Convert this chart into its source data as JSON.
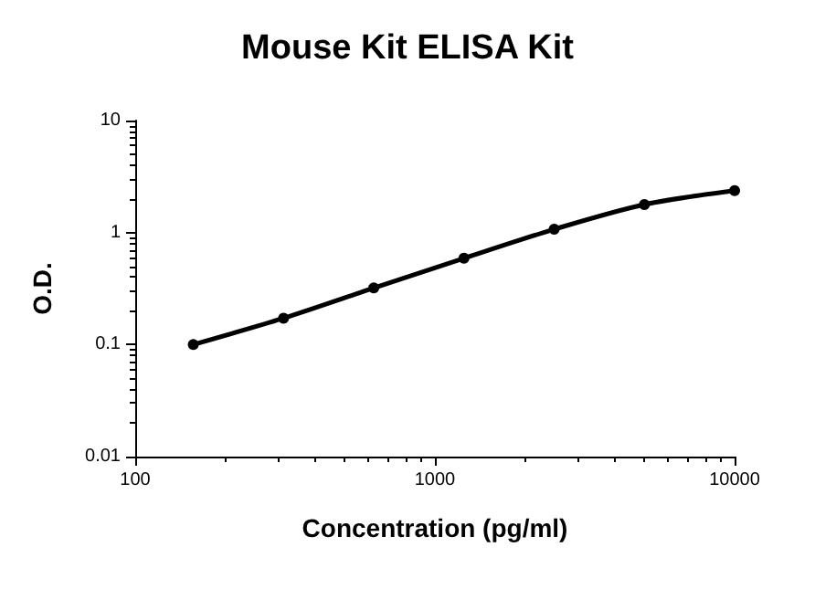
{
  "chart_data": {
    "type": "line",
    "title": "Mouse Kit ELISA Kit",
    "xlabel": "Concentration (pg/ml)",
    "ylabel": "O.D.",
    "x": [
      156.25,
      312.5,
      625,
      1250,
      2500,
      5000,
      10000
    ],
    "series": [
      {
        "color": "#000000",
        "values": [
          0.1,
          0.172,
          0.32,
          0.59,
          1.07,
          1.78,
          2.37
        ]
      }
    ],
    "xlim": [
      100,
      10000
    ],
    "xticks": [
      100,
      1000,
      10000
    ],
    "ylim": [
      0.01,
      10
    ],
    "yticks": [
      0.01,
      0.1,
      1,
      10
    ],
    "log": "xy",
    "grid": false,
    "marker": "circle",
    "line_style": "solid"
  }
}
